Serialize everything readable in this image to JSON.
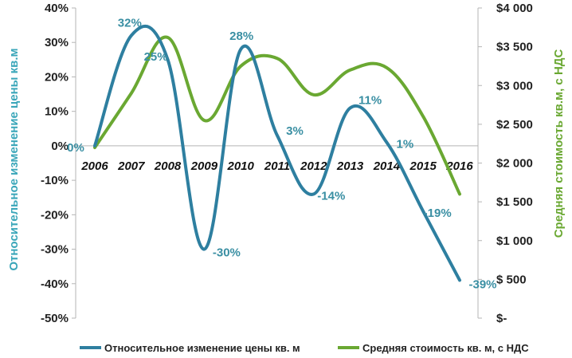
{
  "chart_data": {
    "type": "line",
    "categories": [
      "2006",
      "2007",
      "2008",
      "2009",
      "2010",
      "2011",
      "2012",
      "2013",
      "2014",
      "2015",
      "2016"
    ],
    "series": [
      {
        "name": "Относительное изменение цены кв. м",
        "axis": "left",
        "color": "#2e7fa0",
        "values": [
          0,
          32,
          25,
          -30,
          28,
          3,
          -14,
          11,
          1,
          -19,
          -39
        ],
        "labels": [
          "0%",
          "32%",
          "25%",
          "-30%",
          "28%",
          "3%",
          "-14%",
          "11%",
          "1%",
          "-19%",
          "-39%"
        ]
      },
      {
        "name": "Средняя стоимость кв. м, с НДС",
        "axis": "right",
        "color": "#6aa832",
        "values": [
          2200,
          2900,
          3620,
          2550,
          3250,
          3350,
          2880,
          3200,
          3230,
          2600,
          1600
        ]
      }
    ],
    "y_left": {
      "label": "Относительное изменение цены кв.м",
      "ylim": [
        -50,
        40
      ],
      "ticks": [
        40,
        30,
        20,
        10,
        0,
        -10,
        -20,
        -30,
        -40,
        -50
      ],
      "tick_labels": [
        "40%",
        "30%",
        "20%",
        "10%",
        "0%",
        "-10%",
        "-20%",
        "-30%",
        "-40%",
        "-50%"
      ]
    },
    "y_right": {
      "label": "Средняя стоимость кв.м, с НДС",
      "ylim": [
        0,
        4000
      ],
      "ticks": [
        4000,
        3500,
        3000,
        2500,
        2000,
        1500,
        1000,
        500,
        0
      ],
      "tick_labels": [
        "$4 000",
        "$3 500",
        "$3 000",
        "$2 500",
        "$2 000",
        "$1 500",
        "$1 000",
        "$ 500",
        "$-"
      ]
    },
    "legend_position": "bottom",
    "grid": false
  },
  "colors": {
    "left_axis_title": "#3aa6b9",
    "right_axis_title": "#6aa832",
    "data_label": "#3a8fa3"
  }
}
